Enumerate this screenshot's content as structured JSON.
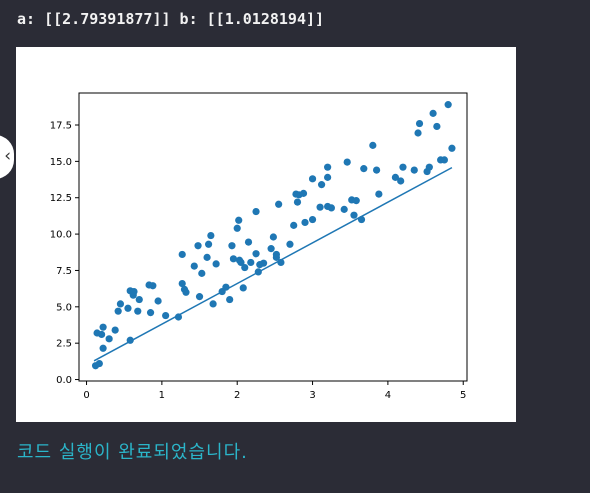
{
  "output": {
    "result_line": "a: [[2.79391877]] b: [[1.0128194]]"
  },
  "status": {
    "message": "코드 실행이 완료되었습니다."
  },
  "side_tab": {
    "glyph": "‹",
    "icon": "chevron-left-icon"
  },
  "colors": {
    "page_background": "#2b2c36",
    "plot_background": "#ffffff",
    "series": "#1f77b4",
    "status_text": "#2bb5c9"
  },
  "chart_data": {
    "type": "scatter",
    "title": "",
    "xlabel": "",
    "ylabel": "",
    "xlim": [
      -0.1,
      5.05
    ],
    "ylim": [
      -0.1,
      19.7
    ],
    "x_ticks": [
      "0",
      "1",
      "2",
      "3",
      "4",
      "5"
    ],
    "y_ticks": [
      "0.0",
      "2.5",
      "5.0",
      "7.5",
      "10.0",
      "12.5",
      "15.0",
      "17.5"
    ],
    "grid": false,
    "series": [
      {
        "kind": "scatter",
        "points": [
          [
            0.12,
            0.95
          ],
          [
            0.17,
            1.1
          ],
          [
            0.22,
            2.15
          ],
          [
            0.14,
            3.2
          ],
          [
            0.2,
            3.1
          ],
          [
            0.22,
            3.6
          ],
          [
            0.3,
            2.8
          ],
          [
            0.38,
            3.4
          ],
          [
            0.42,
            4.7
          ],
          [
            0.45,
            5.2
          ],
          [
            0.55,
            4.9
          ],
          [
            0.58,
            6.1
          ],
          [
            0.62,
            5.8
          ],
          [
            0.63,
            6.05
          ],
          [
            0.68,
            4.7
          ],
          [
            0.7,
            5.5
          ],
          [
            0.58,
            2.7
          ],
          [
            0.83,
            6.5
          ],
          [
            0.88,
            6.45
          ],
          [
            0.95,
            5.4
          ],
          [
            0.85,
            4.6
          ],
          [
            1.05,
            4.4
          ],
          [
            1.22,
            4.3
          ],
          [
            1.27,
            6.6
          ],
          [
            1.3,
            6.2
          ],
          [
            1.32,
            6.0
          ],
          [
            1.27,
            8.6
          ],
          [
            1.43,
            7.8
          ],
          [
            1.48,
            9.2
          ],
          [
            1.53,
            7.3
          ],
          [
            1.5,
            5.7
          ],
          [
            1.6,
            8.4
          ],
          [
            1.62,
            9.3
          ],
          [
            1.65,
            9.9
          ],
          [
            1.72,
            7.95
          ],
          [
            1.68,
            5.2
          ],
          [
            1.8,
            6.05
          ],
          [
            1.85,
            6.35
          ],
          [
            1.9,
            5.5
          ],
          [
            1.95,
            8.3
          ],
          [
            1.93,
            9.2
          ],
          [
            2.0,
            10.4
          ],
          [
            2.02,
            10.95
          ],
          [
            2.03,
            8.2
          ],
          [
            2.05,
            8.05
          ],
          [
            2.1,
            7.7
          ],
          [
            2.08,
            6.3
          ],
          [
            2.15,
            9.45
          ],
          [
            2.18,
            8.05
          ],
          [
            2.25,
            11.55
          ],
          [
            2.25,
            8.65
          ],
          [
            2.28,
            7.4
          ],
          [
            2.3,
            7.9
          ],
          [
            2.35,
            8.0
          ],
          [
            2.45,
            9.0
          ],
          [
            2.48,
            9.8
          ],
          [
            2.52,
            8.4
          ],
          [
            2.52,
            8.6
          ],
          [
            2.58,
            8.05
          ],
          [
            2.55,
            12.05
          ],
          [
            2.7,
            9.3
          ],
          [
            2.75,
            10.6
          ],
          [
            2.8,
            12.2
          ],
          [
            2.82,
            12.7
          ],
          [
            2.78,
            12.75
          ],
          [
            2.88,
            12.8
          ],
          [
            2.9,
            10.8
          ],
          [
            3.0,
            11.0
          ],
          [
            3.0,
            13.8
          ],
          [
            3.1,
            11.85
          ],
          [
            3.12,
            13.4
          ],
          [
            3.2,
            13.9
          ],
          [
            3.2,
            14.6
          ],
          [
            3.2,
            11.9
          ],
          [
            3.25,
            11.8
          ],
          [
            3.42,
            11.7
          ],
          [
            3.46,
            14.95
          ],
          [
            3.52,
            12.35
          ],
          [
            3.55,
            11.3
          ],
          [
            3.58,
            12.3
          ],
          [
            3.65,
            11.0
          ],
          [
            3.68,
            14.5
          ],
          [
            3.8,
            16.1
          ],
          [
            3.85,
            14.4
          ],
          [
            3.88,
            12.75
          ],
          [
            4.1,
            13.9
          ],
          [
            4.17,
            13.65
          ],
          [
            4.2,
            14.6
          ],
          [
            4.35,
            14.4
          ],
          [
            4.4,
            16.95
          ],
          [
            4.42,
            17.6
          ],
          [
            4.52,
            14.3
          ],
          [
            4.55,
            14.6
          ],
          [
            4.6,
            18.3
          ],
          [
            4.65,
            17.4
          ],
          [
            4.7,
            15.1
          ],
          [
            4.75,
            15.1
          ],
          [
            4.8,
            18.9
          ],
          [
            4.85,
            15.9
          ]
        ]
      },
      {
        "kind": "line",
        "points": [
          [
            0.1,
            1.29
          ],
          [
            4.85,
            14.57
          ]
        ]
      }
    ]
  }
}
